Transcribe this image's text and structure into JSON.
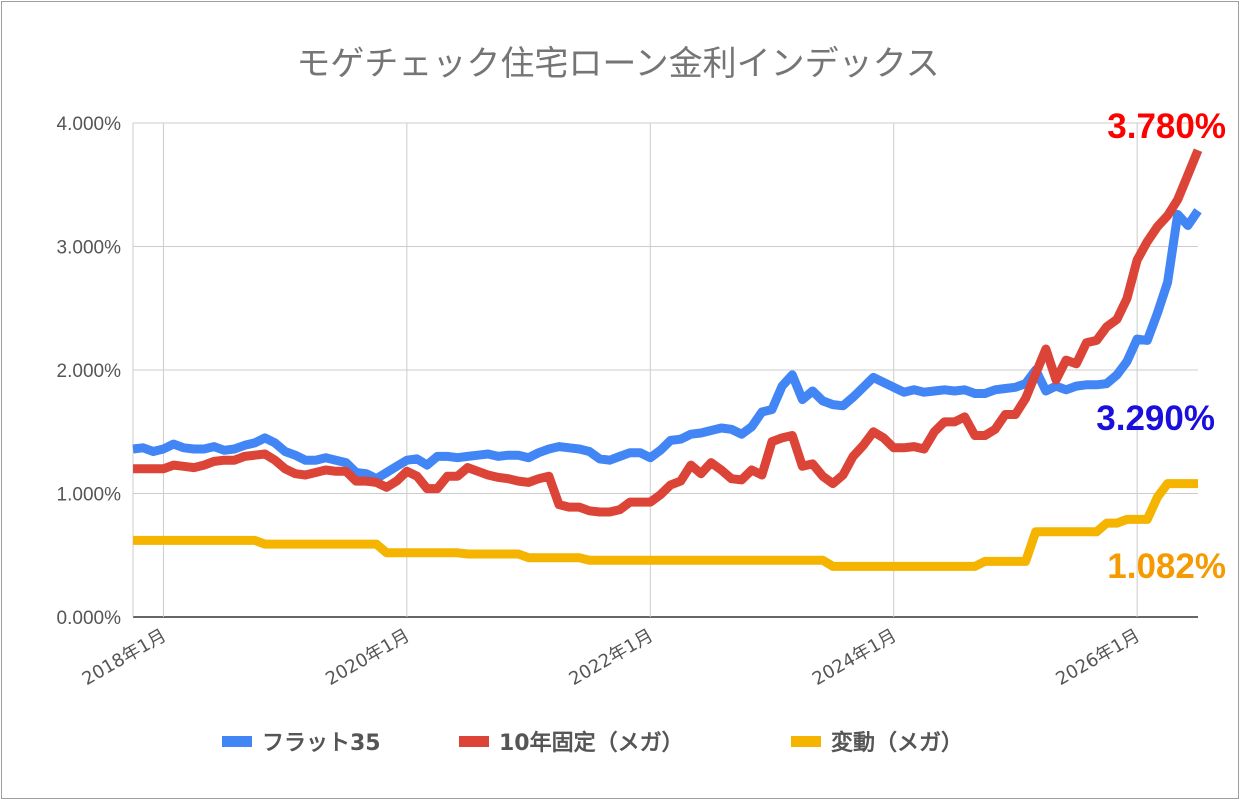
{
  "chart_data": {
    "type": "line",
    "title": "モゲチェック住宅ローン金利インデックス",
    "xlabel": "",
    "ylabel": "",
    "ylim": [
      0,
      4
    ],
    "y_ticks": [
      "0.000%",
      "1.000%",
      "2.000%",
      "3.000%",
      "4.000%"
    ],
    "x_ticks": [
      "2018年1月",
      "2020年1月",
      "2022年1月",
      "2024年1月",
      "2026年1月"
    ],
    "x_range_months": [
      "2017-10",
      "2026-07"
    ],
    "grid": true,
    "legend_position": "bottom",
    "series": [
      {
        "name": "フラット35",
        "color": "#4285f4",
        "end_label": "3.290%",
        "end_label_color": "#1a0fdc",
        "points": [
          [
            "2017-10",
            1.36
          ],
          [
            "2017-11",
            1.37
          ],
          [
            "2017-12",
            1.34
          ],
          [
            "2018-01",
            1.36
          ],
          [
            "2018-02",
            1.4
          ],
          [
            "2018-03",
            1.37
          ],
          [
            "2018-04",
            1.36
          ],
          [
            "2018-05",
            1.36
          ],
          [
            "2018-06",
            1.38
          ],
          [
            "2018-07",
            1.35
          ],
          [
            "2018-08",
            1.36
          ],
          [
            "2018-09",
            1.39
          ],
          [
            "2018-10",
            1.41
          ],
          [
            "2018-11",
            1.45
          ],
          [
            "2018-12",
            1.41
          ],
          [
            "2019-01",
            1.34
          ],
          [
            "2019-02",
            1.31
          ],
          [
            "2019-03",
            1.27
          ],
          [
            "2019-04",
            1.27
          ],
          [
            "2019-05",
            1.29
          ],
          [
            "2019-06",
            1.27
          ],
          [
            "2019-07",
            1.25
          ],
          [
            "2019-08",
            1.17
          ],
          [
            "2019-09",
            1.16
          ],
          [
            "2019-10",
            1.12
          ],
          [
            "2019-11",
            1.17
          ],
          [
            "2019-12",
            1.22
          ],
          [
            "2020-01",
            1.27
          ],
          [
            "2020-02",
            1.28
          ],
          [
            "2020-03",
            1.23
          ],
          [
            "2020-04",
            1.3
          ],
          [
            "2020-05",
            1.3
          ],
          [
            "2020-06",
            1.29
          ],
          [
            "2020-07",
            1.3
          ],
          [
            "2020-08",
            1.31
          ],
          [
            "2020-09",
            1.32
          ],
          [
            "2020-10",
            1.3
          ],
          [
            "2020-11",
            1.31
          ],
          [
            "2020-12",
            1.31
          ],
          [
            "2021-01",
            1.29
          ],
          [
            "2021-02",
            1.33
          ],
          [
            "2021-03",
            1.36
          ],
          [
            "2021-04",
            1.38
          ],
          [
            "2021-05",
            1.37
          ],
          [
            "2021-06",
            1.36
          ],
          [
            "2021-07",
            1.34
          ],
          [
            "2021-08",
            1.28
          ],
          [
            "2021-09",
            1.27
          ],
          [
            "2021-10",
            1.3
          ],
          [
            "2021-11",
            1.33
          ],
          [
            "2021-12",
            1.33
          ],
          [
            "2022-01",
            1.29
          ],
          [
            "2022-02",
            1.35
          ],
          [
            "2022-03",
            1.43
          ],
          [
            "2022-04",
            1.44
          ],
          [
            "2022-05",
            1.48
          ],
          [
            "2022-06",
            1.49
          ],
          [
            "2022-07",
            1.51
          ],
          [
            "2022-08",
            1.53
          ],
          [
            "2022-09",
            1.52
          ],
          [
            "2022-10",
            1.48
          ],
          [
            "2022-11",
            1.54
          ],
          [
            "2022-12",
            1.66
          ],
          [
            "2023-01",
            1.68
          ],
          [
            "2023-02",
            1.87
          ],
          [
            "2023-03",
            1.96
          ],
          [
            "2023-04",
            1.76
          ],
          [
            "2023-05",
            1.83
          ],
          [
            "2023-06",
            1.75
          ],
          [
            "2023-07",
            1.72
          ],
          [
            "2023-08",
            1.71
          ],
          [
            "2023-09",
            1.78
          ],
          [
            "2023-10",
            1.86
          ],
          [
            "2023-11",
            1.94
          ],
          [
            "2023-12",
            1.9
          ],
          [
            "2024-01",
            1.86
          ],
          [
            "2024-02",
            1.82
          ],
          [
            "2024-03",
            1.84
          ],
          [
            "2024-04",
            1.82
          ],
          [
            "2024-05",
            1.83
          ],
          [
            "2024-06",
            1.84
          ],
          [
            "2024-07",
            1.83
          ],
          [
            "2024-08",
            1.84
          ],
          [
            "2024-09",
            1.81
          ],
          [
            "2024-10",
            1.81
          ],
          [
            "2024-11",
            1.84
          ],
          [
            "2024-12",
            1.85
          ],
          [
            "2025-01",
            1.86
          ],
          [
            "2025-02",
            1.89
          ],
          [
            "2025-03",
            2.0
          ],
          [
            "2025-04",
            1.83
          ],
          [
            "2025-05",
            1.87
          ],
          [
            "2025-06",
            1.84
          ],
          [
            "2025-07",
            1.87
          ],
          [
            "2025-08",
            1.88
          ],
          [
            "2025-09",
            1.88
          ],
          [
            "2025-10",
            1.89
          ],
          [
            "2025-11",
            1.96
          ],
          [
            "2025-12",
            2.07
          ],
          [
            "2026-01",
            2.25
          ],
          [
            "2026-02",
            2.24
          ],
          [
            "2026-03",
            2.46
          ],
          [
            "2026-04",
            2.71
          ],
          [
            "2026-05",
            3.26
          ],
          [
            "2026-06",
            3.17
          ],
          [
            "2026-07",
            3.29
          ]
        ]
      },
      {
        "name": "10年固定（メガ）",
        "color": "#db4437",
        "end_label": "3.780%",
        "end_label_color": "#ff0000",
        "points": [
          [
            "2017-10",
            1.2
          ],
          [
            "2017-11",
            1.2
          ],
          [
            "2017-12",
            1.2
          ],
          [
            "2018-01",
            1.2
          ],
          [
            "2018-02",
            1.23
          ],
          [
            "2018-03",
            1.22
          ],
          [
            "2018-04",
            1.21
          ],
          [
            "2018-05",
            1.23
          ],
          [
            "2018-06",
            1.26
          ],
          [
            "2018-07",
            1.27
          ],
          [
            "2018-08",
            1.27
          ],
          [
            "2018-09",
            1.3
          ],
          [
            "2018-10",
            1.31
          ],
          [
            "2018-11",
            1.32
          ],
          [
            "2018-12",
            1.27
          ],
          [
            "2019-01",
            1.2
          ],
          [
            "2019-02",
            1.16
          ],
          [
            "2019-03",
            1.15
          ],
          [
            "2019-04",
            1.17
          ],
          [
            "2019-05",
            1.19
          ],
          [
            "2019-06",
            1.18
          ],
          [
            "2019-07",
            1.18
          ],
          [
            "2019-08",
            1.1
          ],
          [
            "2019-09",
            1.1
          ],
          [
            "2019-10",
            1.09
          ],
          [
            "2019-11",
            1.05
          ],
          [
            "2019-12",
            1.1
          ],
          [
            "2020-01",
            1.18
          ],
          [
            "2020-02",
            1.14
          ],
          [
            "2020-03",
            1.04
          ],
          [
            "2020-04",
            1.04
          ],
          [
            "2020-05",
            1.14
          ],
          [
            "2020-06",
            1.14
          ],
          [
            "2020-07",
            1.21
          ],
          [
            "2020-08",
            1.18
          ],
          [
            "2020-09",
            1.15
          ],
          [
            "2020-10",
            1.13
          ],
          [
            "2020-11",
            1.12
          ],
          [
            "2020-12",
            1.1
          ],
          [
            "2021-01",
            1.09
          ],
          [
            "2021-02",
            1.12
          ],
          [
            "2021-03",
            1.14
          ],
          [
            "2021-04",
            0.91
          ],
          [
            "2021-05",
            0.89
          ],
          [
            "2021-06",
            0.89
          ],
          [
            "2021-07",
            0.86
          ],
          [
            "2021-08",
            0.85
          ],
          [
            "2021-09",
            0.85
          ],
          [
            "2021-10",
            0.87
          ],
          [
            "2021-11",
            0.93
          ],
          [
            "2021-12",
            0.93
          ],
          [
            "2022-01",
            0.93
          ],
          [
            "2022-02",
            0.99
          ],
          [
            "2022-03",
            1.07
          ],
          [
            "2022-04",
            1.1
          ],
          [
            "2022-05",
            1.23
          ],
          [
            "2022-06",
            1.16
          ],
          [
            "2022-07",
            1.25
          ],
          [
            "2022-08",
            1.19
          ],
          [
            "2022-09",
            1.12
          ],
          [
            "2022-10",
            1.11
          ],
          [
            "2022-11",
            1.19
          ],
          [
            "2022-12",
            1.15
          ],
          [
            "2023-01",
            1.42
          ],
          [
            "2023-02",
            1.45
          ],
          [
            "2023-03",
            1.47
          ],
          [
            "2023-04",
            1.22
          ],
          [
            "2023-05",
            1.24
          ],
          [
            "2023-06",
            1.14
          ],
          [
            "2023-07",
            1.08
          ],
          [
            "2023-08",
            1.15
          ],
          [
            "2023-09",
            1.3
          ],
          [
            "2023-10",
            1.39
          ],
          [
            "2023-11",
            1.5
          ],
          [
            "2023-12",
            1.45
          ],
          [
            "2024-01",
            1.37
          ],
          [
            "2024-02",
            1.37
          ],
          [
            "2024-03",
            1.38
          ],
          [
            "2024-04",
            1.36
          ],
          [
            "2024-05",
            1.5
          ],
          [
            "2024-06",
            1.58
          ],
          [
            "2024-07",
            1.58
          ],
          [
            "2024-08",
            1.62
          ],
          [
            "2024-09",
            1.47
          ],
          [
            "2024-10",
            1.47
          ],
          [
            "2024-11",
            1.52
          ],
          [
            "2024-12",
            1.64
          ],
          [
            "2025-01",
            1.64
          ],
          [
            "2025-02",
            1.77
          ],
          [
            "2025-03",
            1.97
          ],
          [
            "2025-04",
            2.17
          ],
          [
            "2025-05",
            1.92
          ],
          [
            "2025-06",
            2.08
          ],
          [
            "2025-07",
            2.05
          ],
          [
            "2025-08",
            2.22
          ],
          [
            "2025-09",
            2.24
          ],
          [
            "2025-10",
            2.35
          ],
          [
            "2025-11",
            2.41
          ],
          [
            "2025-12",
            2.58
          ],
          [
            "2026-01",
            2.89
          ],
          [
            "2026-02",
            3.04
          ],
          [
            "2026-03",
            3.16
          ],
          [
            "2026-04",
            3.25
          ],
          [
            "2026-05",
            3.38
          ],
          [
            "2026-06",
            3.58
          ],
          [
            "2026-07",
            3.78
          ]
        ]
      },
      {
        "name": "変動（メガ）",
        "color": "#f4b400",
        "end_label": "1.082%",
        "end_label_color": "#f59a00",
        "points": [
          [
            "2017-10",
            0.62
          ],
          [
            "2018-10",
            0.62
          ],
          [
            "2018-11",
            0.59
          ],
          [
            "2019-10",
            0.59
          ],
          [
            "2019-11",
            0.52
          ],
          [
            "2020-06",
            0.52
          ],
          [
            "2020-07",
            0.51
          ],
          [
            "2020-12",
            0.51
          ],
          [
            "2021-01",
            0.48
          ],
          [
            "2021-06",
            0.48
          ],
          [
            "2021-07",
            0.46
          ],
          [
            "2023-06",
            0.46
          ],
          [
            "2023-07",
            0.41
          ],
          [
            "2024-09",
            0.41
          ],
          [
            "2024-10",
            0.45
          ],
          [
            "2025-02",
            0.45
          ],
          [
            "2025-03",
            0.69
          ],
          [
            "2025-09",
            0.69
          ],
          [
            "2025-10",
            0.76
          ],
          [
            "2025-11",
            0.76
          ],
          [
            "2025-12",
            0.79
          ],
          [
            "2026-02",
            0.79
          ],
          [
            "2026-03",
            0.97
          ],
          [
            "2026-04",
            1.08
          ],
          [
            "2026-07",
            1.08
          ]
        ]
      }
    ]
  }
}
